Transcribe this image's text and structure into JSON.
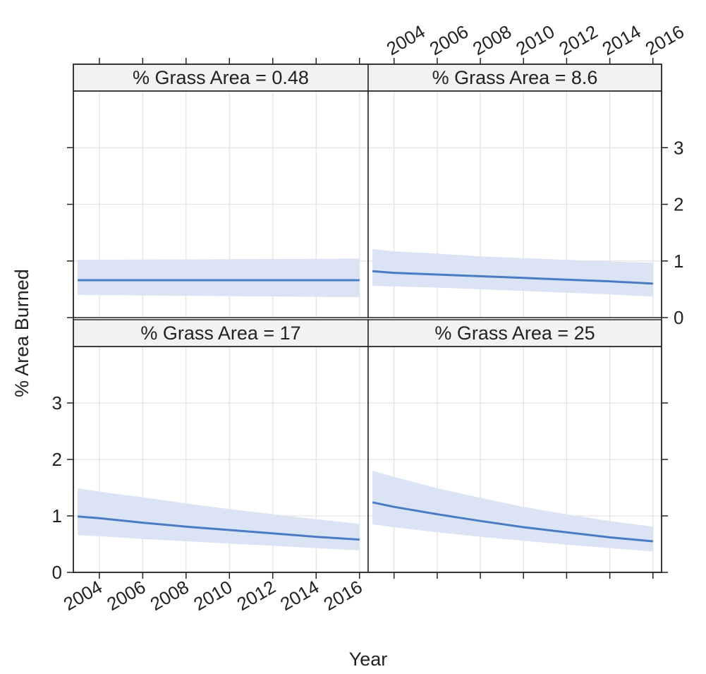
{
  "chart_data": {
    "type": "line",
    "xlabel": "Year",
    "ylabel": "% Area Burned",
    "xlim": [
      2002.8,
      2016.4
    ],
    "ylim": [
      0,
      4
    ],
    "x_ticks": [
      2004,
      2006,
      2008,
      2010,
      2012,
      2014,
      2016
    ],
    "x_tick_labels": [
      "2004",
      "2006",
      "2008",
      "2010",
      "2012",
      "2014",
      "2016"
    ],
    "y_ticks": [
      0,
      1,
      2,
      3
    ],
    "y_tick_labels": [
      "0",
      "1",
      "2",
      "3"
    ],
    "grid": true,
    "colors": {
      "line": "#4a7cc4",
      "band": "#dbe4f4",
      "strip_bg": "#f2f2f2",
      "grid": "#e3e3e3"
    },
    "panels": [
      {
        "strip": "% Grass Area = 0.48",
        "x": [
          2003,
          2016
        ],
        "fit": [
          0.66,
          0.66
        ],
        "lower": [
          0.4,
          0.36
        ],
        "upper": [
          1.02,
          1.04
        ]
      },
      {
        "strip": "% Grass Area = 8.6",
        "x": [
          2003,
          2004,
          2006,
          2008,
          2010,
          2012,
          2014,
          2016
        ],
        "fit": [
          0.82,
          0.79,
          0.76,
          0.73,
          0.7,
          0.67,
          0.64,
          0.6
        ],
        "lower": [
          0.56,
          0.55,
          0.53,
          0.5,
          0.47,
          0.44,
          0.41,
          0.37
        ],
        "upper": [
          1.21,
          1.17,
          1.13,
          1.08,
          1.05,
          1.02,
          0.99,
          0.97
        ]
      },
      {
        "strip": "% Grass Area = 17",
        "x": [
          2003,
          2004,
          2006,
          2008,
          2010,
          2012,
          2014,
          2016
        ],
        "fit": [
          0.99,
          0.96,
          0.88,
          0.81,
          0.75,
          0.69,
          0.63,
          0.58
        ],
        "lower": [
          0.66,
          0.64,
          0.59,
          0.55,
          0.51,
          0.47,
          0.43,
          0.39
        ],
        "upper": [
          1.49,
          1.43,
          1.33,
          1.22,
          1.12,
          1.03,
          0.94,
          0.86
        ]
      },
      {
        "strip": "% Grass Area = 25",
        "x": [
          2003,
          2004,
          2006,
          2008,
          2010,
          2012,
          2014,
          2016
        ],
        "fit": [
          1.24,
          1.16,
          1.03,
          0.91,
          0.8,
          0.71,
          0.62,
          0.55
        ],
        "lower": [
          0.85,
          0.8,
          0.71,
          0.63,
          0.56,
          0.49,
          0.43,
          0.37
        ],
        "upper": [
          1.8,
          1.69,
          1.49,
          1.32,
          1.16,
          1.03,
          0.91,
          0.81
        ]
      }
    ]
  }
}
